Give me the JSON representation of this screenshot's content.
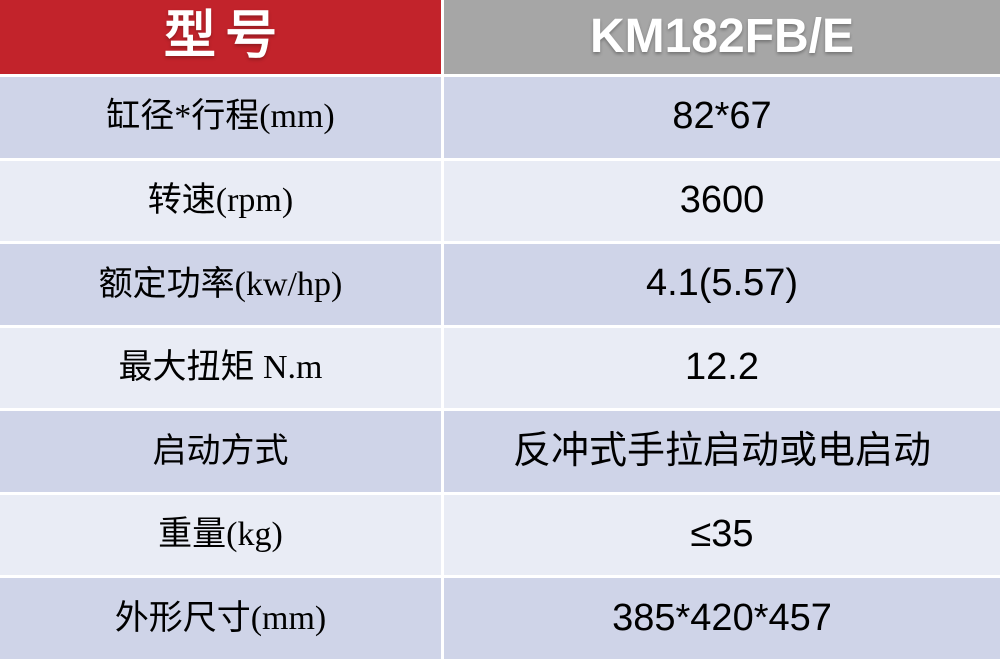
{
  "table": {
    "header": {
      "model_label": "型号",
      "model_value": "KM182FB/E"
    },
    "rows": [
      {
        "label": "缸径*行程(mm)",
        "value": "82*67"
      },
      {
        "label": "转速(rpm)",
        "value": "3600"
      },
      {
        "label": "额定功率(kw/hp)",
        "value": "4.1(5.57)"
      },
      {
        "label": "最大扭矩 N.m",
        "value": "12.2"
      },
      {
        "label": "启动方式",
        "value": "反冲式手拉启动或电启动"
      },
      {
        "label": "重量(kg)",
        "value": "≤35"
      },
      {
        "label": "外形尺寸(mm)",
        "value": "385*420*457"
      }
    ],
    "colors": {
      "header_label_bg": "#c2232b",
      "header_value_bg": "#a6a6a6",
      "row_dark_bg": "#cfd4e8",
      "row_light_bg": "#e9ecf5",
      "header_text": "#ffffff",
      "cell_text": "#000000",
      "separator": "#ffffff"
    }
  }
}
